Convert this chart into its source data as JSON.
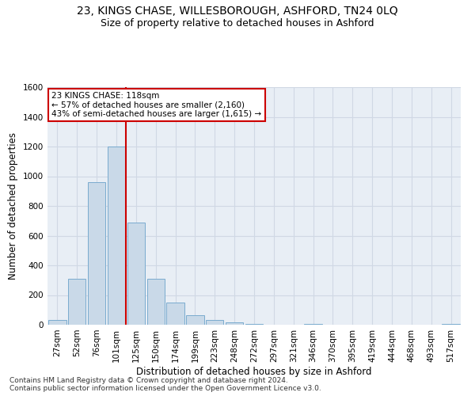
{
  "title": "23, KINGS CHASE, WILLESBOROUGH, ASHFORD, TN24 0LQ",
  "subtitle": "Size of property relative to detached houses in Ashford",
  "xlabel": "Distribution of detached houses by size in Ashford",
  "ylabel": "Number of detached properties",
  "footer_line1": "Contains HM Land Registry data © Crown copyright and database right 2024.",
  "footer_line2": "Contains public sector information licensed under the Open Government Licence v3.0.",
  "bin_labels": [
    "27sqm",
    "52sqm",
    "76sqm",
    "101sqm",
    "125sqm",
    "150sqm",
    "174sqm",
    "199sqm",
    "223sqm",
    "248sqm",
    "272sqm",
    "297sqm",
    "321sqm",
    "346sqm",
    "370sqm",
    "395sqm",
    "419sqm",
    "444sqm",
    "468sqm",
    "493sqm",
    "517sqm"
  ],
  "bar_values": [
    30,
    310,
    960,
    1200,
    690,
    310,
    150,
    65,
    30,
    15,
    5,
    0,
    0,
    5,
    0,
    0,
    0,
    0,
    0,
    0,
    5
  ],
  "bar_color": "#c9d9e8",
  "bar_edgecolor": "#7aabcf",
  "vline_x_index": 4,
  "vline_color": "#cc0000",
  "annotation_text": "23 KINGS CHASE: 118sqm\n← 57% of detached houses are smaller (2,160)\n43% of semi-detached houses are larger (1,615) →",
  "annotation_box_edgecolor": "#cc0000",
  "ylim": [
    0,
    1600
  ],
  "yticks": [
    0,
    200,
    400,
    600,
    800,
    1000,
    1200,
    1400,
    1600
  ],
  "grid_color": "#d0d8e4",
  "background_color": "#e8eef5",
  "title_fontsize": 10,
  "subtitle_fontsize": 9,
  "tick_fontsize": 7.5,
  "ylabel_fontsize": 8.5,
  "xlabel_fontsize": 8.5,
  "annotation_fontsize": 7.5,
  "footer_fontsize": 6.5
}
